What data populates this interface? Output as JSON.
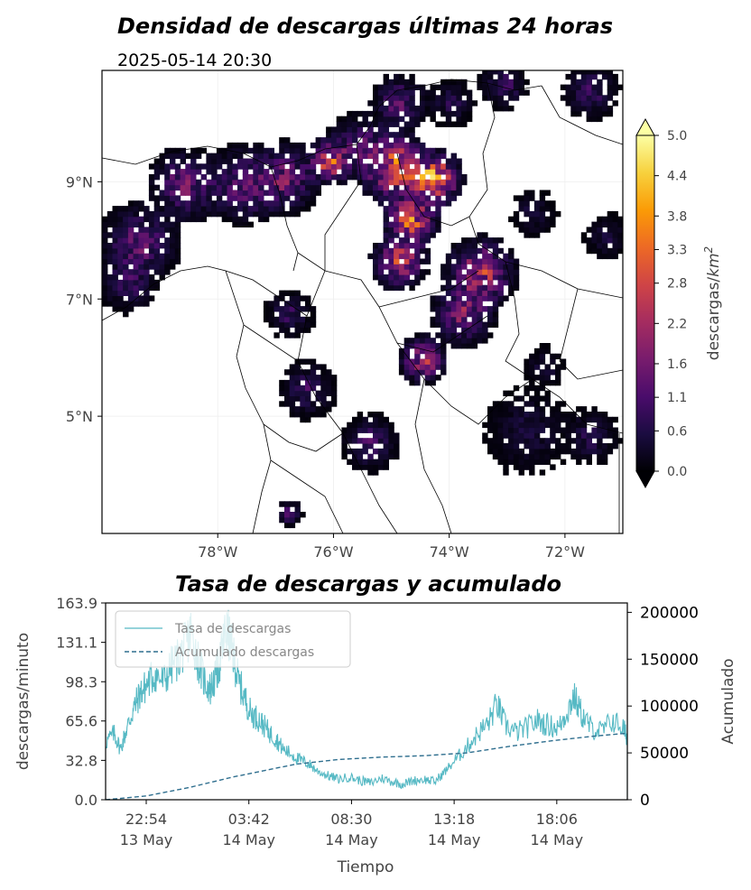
{
  "map_panel": {
    "title": "Densidad de descargas últimas 24 horas",
    "subtitle": "2025-05-14 20:30"
  },
  "chart_data": [
    {
      "type": "heatmap",
      "title": "Densidad de descargas últimas 24 horas",
      "subtitle": "2025-05-14 20:30",
      "x_ticks": [
        "78°W",
        "76°W",
        "74°W",
        "72°W"
      ],
      "x_tick_values": [
        -78,
        -76,
        -74,
        -72
      ],
      "y_ticks": [
        "9°N",
        "7°N",
        "5°N"
      ],
      "y_tick_values": [
        9,
        7,
        5
      ],
      "xlim": [
        -80.0,
        -71.0
      ],
      "ylim": [
        3.0,
        10.9
      ],
      "colorbar": {
        "label": "descargas/",
        "label_unit": "km",
        "label_exp": "2",
        "cmap": "inferno",
        "range": [
          0.0,
          5.0
        ],
        "ticks": [
          "0.0",
          "0.6",
          "1.1",
          "1.6",
          "2.2",
          "2.8",
          "3.3",
          "3.8",
          "4.4",
          "5.0"
        ],
        "colors": [
          "#000004",
          "#1b0c41",
          "#4a0c6b",
          "#781c6d",
          "#a52c60",
          "#cf4446",
          "#ed6925",
          "#fb9b06",
          "#f7d13d",
          "#fcffa4"
        ]
      },
      "clusters": [
        {
          "lon": -79.4,
          "lat": 7.9,
          "intensity": 1.6,
          "radius": 0.5
        },
        {
          "lon": -79.6,
          "lat": 7.2,
          "intensity": 1.0,
          "radius": 0.35
        },
        {
          "lon": -78.6,
          "lat": 8.9,
          "intensity": 1.8,
          "radius": 0.45
        },
        {
          "lon": -77.6,
          "lat": 8.9,
          "intensity": 1.5,
          "radius": 0.5
        },
        {
          "lon": -76.9,
          "lat": 9.0,
          "intensity": 1.8,
          "radius": 0.45
        },
        {
          "lon": -76.1,
          "lat": 9.3,
          "intensity": 3.3,
          "radius": 0.3
        },
        {
          "lon": -75.0,
          "lat": 9.2,
          "intensity": 3.8,
          "radius": 0.45
        },
        {
          "lon": -74.3,
          "lat": 9.0,
          "intensity": 4.4,
          "radius": 0.35
        },
        {
          "lon": -75.6,
          "lat": 9.6,
          "intensity": 1.2,
          "radius": 0.4
        },
        {
          "lon": -74.9,
          "lat": 10.3,
          "intensity": 1.6,
          "radius": 0.35
        },
        {
          "lon": -74.0,
          "lat": 10.3,
          "intensity": 0.8,
          "radius": 0.3
        },
        {
          "lon": -73.1,
          "lat": 10.6,
          "intensity": 1.2,
          "radius": 0.3
        },
        {
          "lon": -71.6,
          "lat": 10.5,
          "intensity": 1.1,
          "radius": 0.35
        },
        {
          "lon": -74.7,
          "lat": 8.3,
          "intensity": 3.5,
          "radius": 0.35
        },
        {
          "lon": -74.9,
          "lat": 7.6,
          "intensity": 3.0,
          "radius": 0.35
        },
        {
          "lon": -73.5,
          "lat": 7.4,
          "intensity": 2.8,
          "radius": 0.45
        },
        {
          "lon": -73.8,
          "lat": 6.7,
          "intensity": 2.0,
          "radius": 0.4
        },
        {
          "lon": -74.5,
          "lat": 5.9,
          "intensity": 2.8,
          "radius": 0.3
        },
        {
          "lon": -76.8,
          "lat": 6.7,
          "intensity": 1.0,
          "radius": 0.3
        },
        {
          "lon": -76.5,
          "lat": 5.4,
          "intensity": 1.1,
          "radius": 0.35
        },
        {
          "lon": -75.4,
          "lat": 4.5,
          "intensity": 1.2,
          "radius": 0.35
        },
        {
          "lon": -72.7,
          "lat": 4.7,
          "intensity": 0.6,
          "radius": 0.55
        },
        {
          "lon": -71.6,
          "lat": 4.6,
          "intensity": 0.8,
          "radius": 0.35
        },
        {
          "lon": -72.6,
          "lat": 8.4,
          "intensity": 0.6,
          "radius": 0.3
        },
        {
          "lon": -71.3,
          "lat": 8.0,
          "intensity": 0.6,
          "radius": 0.3
        },
        {
          "lon": -76.8,
          "lat": 3.3,
          "intensity": 1.5,
          "radius": 0.15
        },
        {
          "lon": -72.4,
          "lat": 5.8,
          "intensity": 0.6,
          "radius": 0.25
        }
      ]
    },
    {
      "type": "line",
      "title": "Tasa de descargas y acumulado",
      "xlabel": "Tiempo",
      "ylabel": "descargas/minuto",
      "y2label": "Acumulado",
      "ylim": [
        0.0,
        163.9
      ],
      "y_ticks": [
        "0.0",
        "32.8",
        "65.6",
        "98.3",
        "131.1",
        "163.9"
      ],
      "y2lim": [
        0,
        210000
      ],
      "y2_ticks": [
        "0",
        "50000",
        "100000",
        "150000",
        "200000"
      ],
      "x_range_hours": [
        -1.9,
        22.5
      ],
      "x_tick_hours": [
        0,
        4.8,
        9.6,
        14.4,
        19.2
      ],
      "x_ticks": [
        {
          "time": "22:54",
          "date": "13 May"
        },
        {
          "time": "03:42",
          "date": "14 May"
        },
        {
          "time": "08:30",
          "date": "14 May"
        },
        {
          "time": "13:18",
          "date": "14 May"
        },
        {
          "time": "18:06",
          "date": "14 May"
        }
      ],
      "legend_position": "upper-left",
      "series": [
        {
          "name": "Tasa de descargas",
          "axis": "left",
          "style": "solid",
          "color": "#56b9c4",
          "points": [
            [
              -1.9,
              48
            ],
            [
              -1.5,
              55
            ],
            [
              -1.2,
              42
            ],
            [
              -0.9,
              60
            ],
            [
              -0.6,
              75
            ],
            [
              -0.3,
              88
            ],
            [
              0.0,
              95
            ],
            [
              0.4,
              105
            ],
            [
              0.8,
              98
            ],
            [
              1.2,
              112
            ],
            [
              1.6,
              120
            ],
            [
              1.9,
              132
            ],
            [
              2.1,
              140
            ],
            [
              2.4,
              118
            ],
            [
              2.7,
              100
            ],
            [
              3.0,
              92
            ],
            [
              3.3,
              105
            ],
            [
              3.5,
              120
            ],
            [
              3.7,
              140
            ],
            [
              3.9,
              135
            ],
            [
              4.1,
              118
            ],
            [
              4.3,
              100
            ],
            [
              4.6,
              85
            ],
            [
              4.9,
              72
            ],
            [
              5.2,
              68
            ],
            [
              5.5,
              62
            ],
            [
              5.8,
              55
            ],
            [
              6.1,
              50
            ],
            [
              6.4,
              42
            ],
            [
              6.8,
              38
            ],
            [
              7.2,
              33
            ],
            [
              7.6,
              30
            ],
            [
              8.0,
              24
            ],
            [
              8.5,
              20
            ],
            [
              9.0,
              17
            ],
            [
              9.5,
              19
            ],
            [
              10.0,
              16
            ],
            [
              10.5,
              14
            ],
            [
              11.0,
              18
            ],
            [
              11.5,
              15
            ],
            [
              12.0,
              13
            ],
            [
              12.5,
              16
            ],
            [
              13.0,
              17
            ],
            [
              13.5,
              15
            ],
            [
              14.0,
              24
            ],
            [
              14.5,
              34
            ],
            [
              15.0,
              44
            ],
            [
              15.5,
              55
            ],
            [
              16.0,
              64
            ],
            [
              16.4,
              80
            ],
            [
              16.8,
              62
            ],
            [
              17.3,
              56
            ],
            [
              17.8,
              60
            ],
            [
              18.3,
              66
            ],
            [
              18.8,
              62
            ],
            [
              19.3,
              60
            ],
            [
              19.7,
              74
            ],
            [
              20.0,
              86
            ],
            [
              20.4,
              70
            ],
            [
              20.8,
              60
            ],
            [
              21.3,
              57
            ],
            [
              21.8,
              66
            ],
            [
              22.3,
              60
            ],
            [
              22.5,
              52
            ]
          ]
        },
        {
          "name": "Acumulado descargas",
          "axis": "right",
          "style": "dashed",
          "color": "#2e6e8e",
          "points": [
            [
              -1.9,
              0
            ],
            [
              0.0,
              4000
            ],
            [
              2.0,
              13000
            ],
            [
              4.0,
              24000
            ],
            [
              5.5,
              31000
            ],
            [
              7.0,
              38000
            ],
            [
              9.0,
              43000
            ],
            [
              11.0,
              45500
            ],
            [
              13.0,
              47000
            ],
            [
              15.0,
              50000
            ],
            [
              17.0,
              57000
            ],
            [
              19.0,
              63000
            ],
            [
              21.0,
              68000
            ],
            [
              22.5,
              71000
            ]
          ]
        }
      ]
    }
  ]
}
